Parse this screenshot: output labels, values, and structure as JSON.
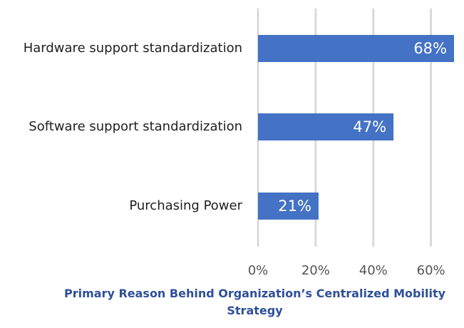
{
  "chart_data": {
    "type": "bar",
    "orientation": "horizontal",
    "title": "Primary Reason Behind Organization’s Centralized Mobility Strategy",
    "categories": [
      "Hardware support standardization",
      "Software support standardization",
      "Purchasing Power"
    ],
    "values": [
      68,
      47,
      21
    ],
    "data_labels": [
      "68%",
      "47%",
      "21%"
    ],
    "x_ticks": [
      "0%",
      "20%",
      "40%",
      "60%"
    ],
    "xlim": [
      0,
      68
    ],
    "grid": true,
    "legend": "none",
    "bar_color": "#4472c4",
    "grid_color": "#d9d9d9"
  }
}
